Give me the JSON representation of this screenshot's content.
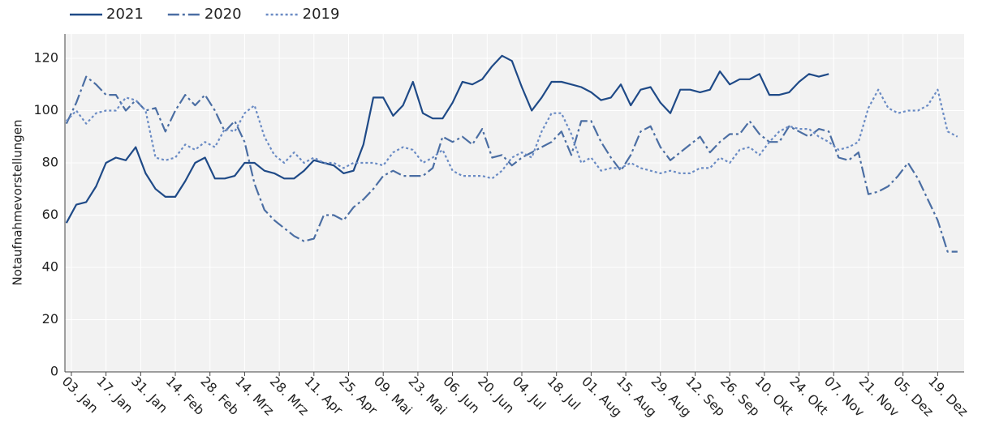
{
  "chart_data": {
    "type": "line",
    "y_label": "Notaufnahmevorstellungen",
    "x": [
      1,
      5,
      9,
      13,
      17,
      21,
      25,
      29,
      33,
      37,
      41,
      45,
      49,
      53,
      57,
      61,
      65,
      69,
      73,
      77,
      81,
      85,
      89,
      93,
      97,
      101,
      105,
      109,
      113,
      117,
      121,
      125,
      129,
      133,
      137,
      141,
      145,
      149,
      153,
      157,
      161,
      165,
      169,
      173,
      177,
      181,
      185,
      189,
      193,
      197,
      201,
      205,
      209,
      213,
      217,
      221,
      225,
      229,
      233,
      237,
      241,
      245,
      249,
      253,
      257,
      261,
      265,
      269,
      273,
      277,
      281,
      285,
      289,
      293,
      297,
      301,
      305,
      309,
      313,
      317,
      321,
      325,
      329,
      333,
      337,
      341,
      345,
      349,
      353,
      357,
      361
    ],
    "xlim": [
      0.4,
      363.7
    ],
    "xticks": [
      {
        "value": 3,
        "label": "03. Jan"
      },
      {
        "value": 17,
        "label": "17. Jan"
      },
      {
        "value": 31,
        "label": "31. Jan"
      },
      {
        "value": 45,
        "label": "14. Feb"
      },
      {
        "value": 59,
        "label": "28. Feb"
      },
      {
        "value": 73,
        "label": "14. Mrz"
      },
      {
        "value": 87,
        "label": "28. Mrz"
      },
      {
        "value": 101,
        "label": "11. Apr"
      },
      {
        "value": 115,
        "label": "25. Apr"
      },
      {
        "value": 129,
        "label": "09. Mai"
      },
      {
        "value": 143,
        "label": "23. Mai"
      },
      {
        "value": 157,
        "label": "06. Jun"
      },
      {
        "value": 171,
        "label": "20. Jun"
      },
      {
        "value": 185,
        "label": "04. Jul"
      },
      {
        "value": 199,
        "label": "18. Jul"
      },
      {
        "value": 213,
        "label": "01. Aug"
      },
      {
        "value": 227,
        "label": "15. Aug"
      },
      {
        "value": 241,
        "label": "29. Aug"
      },
      {
        "value": 255,
        "label": "12. Sep"
      },
      {
        "value": 269,
        "label": "26. Sep"
      },
      {
        "value": 283,
        "label": "10. Okt"
      },
      {
        "value": 297,
        "label": "24. Okt"
      },
      {
        "value": 311,
        "label": "07. Nov"
      },
      {
        "value": 325,
        "label": "21. Nov"
      },
      {
        "value": 339,
        "label": "05. Dez"
      },
      {
        "value": 353,
        "label": "19. Dez"
      }
    ],
    "ylim": [
      0,
      129.3
    ],
    "yticks": [
      0,
      20,
      40,
      60,
      80,
      100,
      120
    ],
    "grid": true,
    "legend": "top-left",
    "series": [
      {
        "name": "2021",
        "color": "#1f4a87",
        "dash": "solid",
        "values": [
          57,
          64,
          65,
          71,
          80,
          82,
          81,
          86,
          76,
          70,
          67,
          67,
          73,
          80,
          82,
          74,
          74,
          75,
          80,
          80,
          77,
          76,
          74,
          74,
          77,
          81,
          80,
          79,
          76,
          77,
          87,
          105,
          105,
          98,
          102,
          111,
          99,
          97,
          97,
          103,
          111,
          110,
          112,
          117,
          121,
          119,
          109,
          100,
          105,
          111,
          111,
          110,
          109,
          107,
          104,
          105,
          110,
          102,
          108,
          109,
          103,
          99,
          108,
          108,
          107,
          108,
          115,
          110,
          112,
          112,
          114,
          106,
          106,
          107,
          111,
          114,
          113,
          114,
          null,
          null,
          null,
          null,
          null,
          null,
          null,
          null,
          null,
          null,
          null,
          null,
          null
        ]
      },
      {
        "name": "2020",
        "color": "#4b6ea3",
        "dash": "dashdot",
        "values": [
          95,
          103,
          113,
          110,
          106,
          106,
          100,
          104,
          100,
          101,
          92,
          100,
          106,
          102,
          106,
          100,
          92,
          96,
          88,
          72,
          62,
          58,
          55,
          52,
          50,
          51,
          60,
          60,
          58,
          63,
          66,
          70,
          75,
          77,
          75,
          75,
          75,
          78,
          90,
          88,
          90,
          87,
          93,
          82,
          83,
          79,
          82,
          84,
          86,
          88,
          92,
          83,
          96,
          96,
          88,
          82,
          77,
          83,
          92,
          94,
          86,
          81,
          84,
          87,
          90,
          84,
          88,
          91,
          91,
          96,
          91,
          88,
          88,
          94,
          92,
          90,
          93,
          92,
          82,
          81,
          84,
          68,
          69,
          71,
          75,
          80,
          74,
          66,
          58,
          46,
          46
        ]
      },
      {
        "name": "2019",
        "color": "#6a8bc4",
        "dash": "dot",
        "values": [
          96,
          100,
          95,
          99,
          100,
          100,
          105,
          104,
          100,
          82,
          81,
          82,
          87,
          85,
          88,
          86,
          93,
          92,
          99,
          102,
          90,
          83,
          80,
          84,
          80,
          82,
          80,
          80,
          78,
          80,
          80,
          80,
          79,
          84,
          86,
          85,
          80,
          82,
          85,
          77,
          75,
          75,
          75,
          74,
          77,
          82,
          84,
          82,
          92,
          99,
          99,
          91,
          80,
          82,
          77,
          78,
          78,
          80,
          78,
          77,
          76,
          77,
          76,
          76,
          78,
          78,
          82,
          80,
          85,
          86,
          83,
          88,
          92,
          94,
          93,
          93,
          90,
          88,
          85,
          86,
          88,
          101,
          108,
          101,
          99,
          100,
          100,
          102,
          108,
          92,
          90
        ]
      }
    ]
  }
}
